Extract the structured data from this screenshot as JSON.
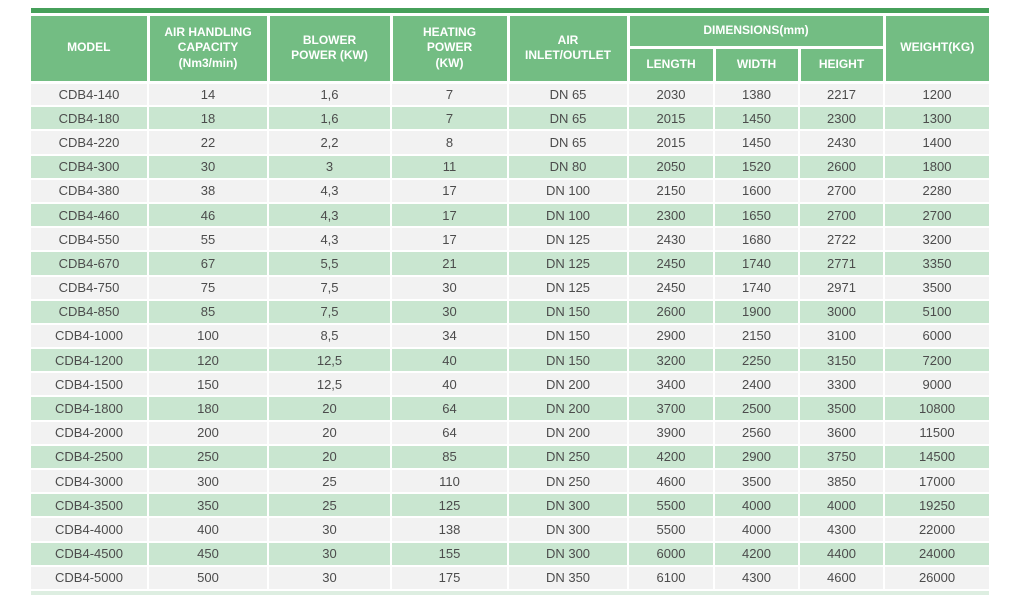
{
  "colors": {
    "header_green": "#73bd83",
    "top_line_green": "#46a05a",
    "stripe_green": "#c9e6d0",
    "stripe_gray": "#f2f2f2",
    "header_text": "#ffffff",
    "body_text": "#4c4c4c",
    "bottom_strip": "#ddeee1"
  },
  "table": {
    "header": {
      "model": "MODEL",
      "capacity": "AIR HANDLING\nCAPACITY\n(Nm3/min)",
      "blower": "BLOWER\nPOWER (KW)",
      "heating": "HEATING\nPOWER\n(KW)",
      "air_inlet_outlet": "AIR\nINLET/OUTLET",
      "dimensions_group": "DIMENSIONS(mm)",
      "length": "LENGTH",
      "width": "WIDTH",
      "height": "HEIGHT",
      "weight": "WEIGHT(KG)"
    },
    "column_keys": [
      "model",
      "capacity",
      "blower-power",
      "heating-power",
      "air-inlet-outlet",
      "length",
      "width",
      "height",
      "weight"
    ],
    "rows": [
      [
        "CDB4-140",
        "14",
        "1,6",
        "7",
        "DN 65",
        "2030",
        "1380",
        "2217",
        "1200"
      ],
      [
        "CDB4-180",
        "18",
        "1,6",
        "7",
        "DN 65",
        "2015",
        "1450",
        "2300",
        "1300"
      ],
      [
        "CDB4-220",
        "22",
        "2,2",
        "8",
        "DN 65",
        "2015",
        "1450",
        "2430",
        "1400"
      ],
      [
        "CDB4-300",
        "30",
        "3",
        "11",
        "DN 80",
        "2050",
        "1520",
        "2600",
        "1800"
      ],
      [
        "CDB4-380",
        "38",
        "4,3",
        "17",
        "DN 100",
        "2150",
        "1600",
        "2700",
        "2280"
      ],
      [
        "CDB4-460",
        "46",
        "4,3",
        "17",
        "DN 100",
        "2300",
        "1650",
        "2700",
        "2700"
      ],
      [
        "CDB4-550",
        "55",
        "4,3",
        "17",
        "DN 125",
        "2430",
        "1680",
        "2722",
        "3200"
      ],
      [
        "CDB4-670",
        "67",
        "5,5",
        "21",
        "DN 125",
        "2450",
        "1740",
        "2771",
        "3350"
      ],
      [
        "CDB4-750",
        "75",
        "7,5",
        "30",
        "DN 125",
        "2450",
        "1740",
        "2971",
        "3500"
      ],
      [
        "CDB4-850",
        "85",
        "7,5",
        "30",
        "DN 150",
        "2600",
        "1900",
        "3000",
        "5100"
      ],
      [
        "CDB4-1000",
        "100",
        "8,5",
        "34",
        "DN 150",
        "2900",
        "2150",
        "3100",
        "6000"
      ],
      [
        "CDB4-1200",
        "120",
        "12,5",
        "40",
        "DN 150",
        "3200",
        "2250",
        "3150",
        "7200"
      ],
      [
        "CDB4-1500",
        "150",
        "12,5",
        "40",
        "DN 200",
        "3400",
        "2400",
        "3300",
        "9000"
      ],
      [
        "CDB4-1800",
        "180",
        "20",
        "64",
        "DN 200",
        "3700",
        "2500",
        "3500",
        "10800"
      ],
      [
        "CDB4-2000",
        "200",
        "20",
        "64",
        "DN 200",
        "3900",
        "2560",
        "3600",
        "11500"
      ],
      [
        "CDB4-2500",
        "250",
        "20",
        "85",
        "DN 250",
        "4200",
        "2900",
        "3750",
        "14500"
      ],
      [
        "CDB4-3000",
        "300",
        "25",
        "110",
        "DN 250",
        "4600",
        "3500",
        "3850",
        "17000"
      ],
      [
        "CDB4-3500",
        "350",
        "25",
        "125",
        "DN 300",
        "5500",
        "4000",
        "4000",
        "19250"
      ],
      [
        "CDB4-4000",
        "400",
        "30",
        "138",
        "DN 300",
        "5500",
        "4000",
        "4300",
        "22000"
      ],
      [
        "CDB4-4500",
        "450",
        "30",
        "155",
        "DN 300",
        "6000",
        "4200",
        "4400",
        "24000"
      ],
      [
        "CDB4-5000",
        "500",
        "30",
        "175",
        "DN 350",
        "6100",
        "4300",
        "4600",
        "26000"
      ]
    ]
  }
}
